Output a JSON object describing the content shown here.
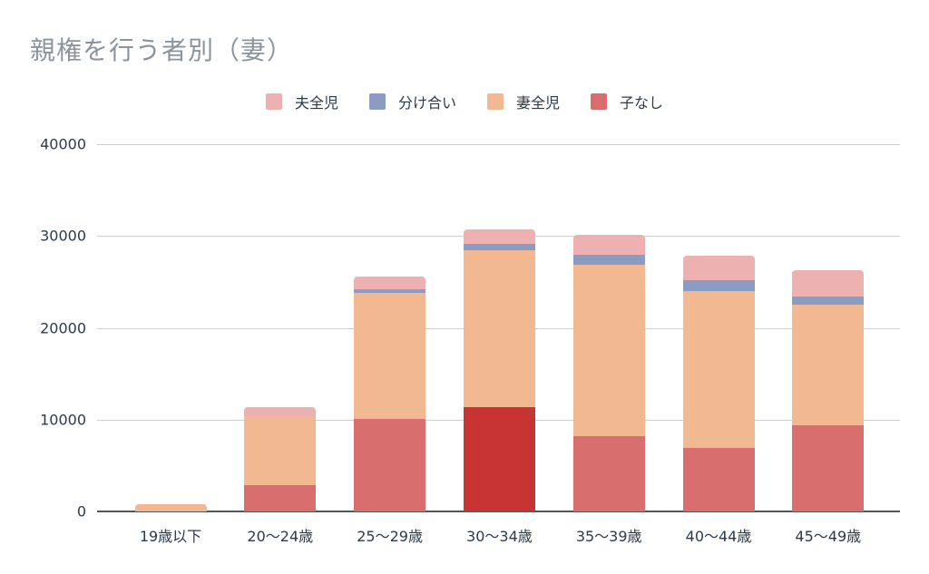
{
  "chart_data": {
    "type": "bar",
    "stacked": true,
    "title": "親権を行う者別（妻）",
    "xlabel": "",
    "ylabel": "",
    "ylim": [
      0,
      40000
    ],
    "yticks": [
      0,
      10000,
      20000,
      30000,
      40000
    ],
    "grid": true,
    "legend_position": "top",
    "categories": [
      "19歳以下",
      "20〜24歳",
      "25〜29歳",
      "30〜34歳",
      "35〜39歳",
      "40〜44歳",
      "45〜49歳"
    ],
    "series": [
      {
        "name": "子なし",
        "color": "#d96e6e",
        "values": [
          0,
          2860,
          10070,
          11360,
          8200,
          6910,
          9380
        ]
      },
      {
        "name": "妻全児",
        "color": "#f1b892",
        "values": [
          800,
          7510,
          13730,
          17080,
          18660,
          17090,
          13140
        ]
      },
      {
        "name": "分け合い",
        "color": "#8a9cc4",
        "values": [
          0,
          0,
          400,
          700,
          1090,
          1190,
          890
        ]
      },
      {
        "name": "夫全児",
        "color": "#eeb1b2",
        "values": [
          0,
          990,
          1380,
          1580,
          2170,
          2660,
          2860
        ]
      }
    ],
    "highlight": {
      "category": "30〜34歳",
      "series": "子なし",
      "color": "#c83333"
    }
  },
  "legend": [
    {
      "label": "夫全児",
      "color": "#eeb1b2"
    },
    {
      "label": "分け合い",
      "color": "#8a9cc4"
    },
    {
      "label": "妻全児",
      "color": "#f1b892"
    },
    {
      "label": "子なし",
      "color": "#d96e6e"
    }
  ],
  "yaxis_labels": [
    "0",
    "10000",
    "20000",
    "30000",
    "40000"
  ]
}
